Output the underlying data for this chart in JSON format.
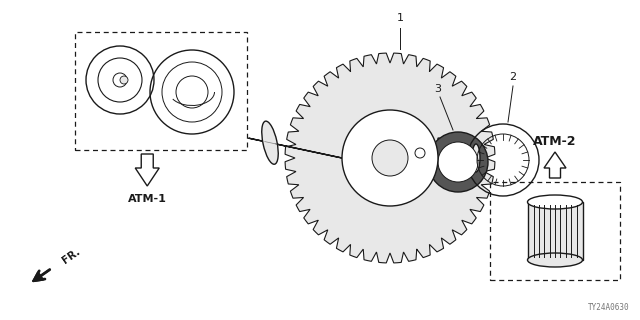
{
  "bg_color": "#ffffff",
  "line_color": "#1a1a1a",
  "gray_fill": "#e8e8e8",
  "part_code": "TY24A0630",
  "labels": {
    "atm1": "ATM-1",
    "atm2": "ATM-2",
    "fr": "FR.",
    "n1": "1",
    "n2": "2",
    "n3": "3"
  },
  "fig_w": 6.4,
  "fig_h": 3.2,
  "dpi": 100
}
